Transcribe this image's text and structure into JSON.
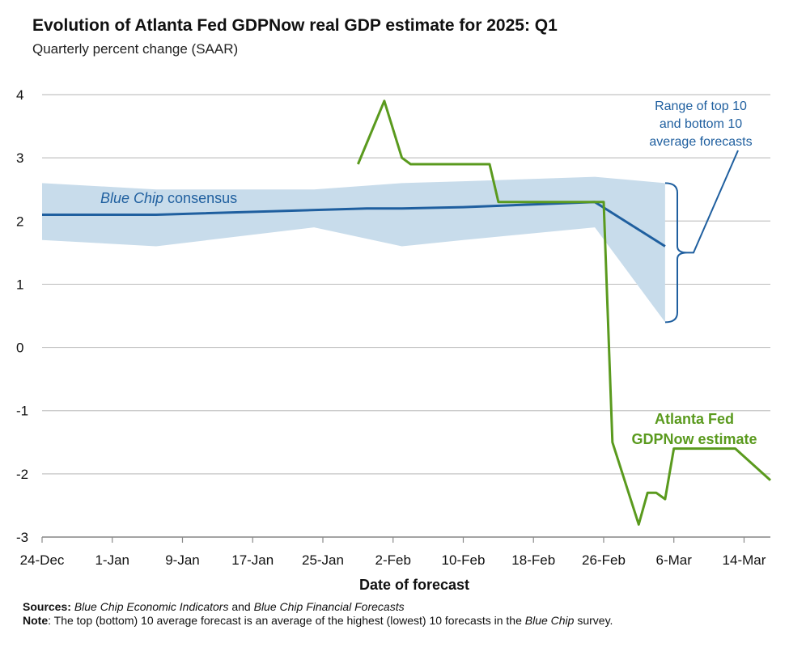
{
  "chart_data": {
    "type": "line",
    "title": "Evolution of Atlanta Fed GDPNow real GDP estimate for 2025: Q1",
    "subtitle": "Quarterly percent change (SAAR)",
    "xlabel": "Date of forecast",
    "ylabel": "",
    "ylim": [
      -3,
      4
    ],
    "yticks": [
      "4",
      "3",
      "2",
      "1",
      "0",
      "-1",
      "-2",
      "-3"
    ],
    "ytick_values": [
      4,
      3,
      2,
      1,
      0,
      -1,
      -2,
      -3
    ],
    "x_domain": [
      "2024-12-24",
      "2025-03-17"
    ],
    "xticks": [
      "24-Dec",
      "1-Jan",
      "9-Jan",
      "17-Jan",
      "25-Jan",
      "2-Feb",
      "10-Feb",
      "18-Feb",
      "26-Feb",
      "6-Mar",
      "14-Mar"
    ],
    "xtick_dates": [
      "2024-12-24",
      "2025-01-01",
      "2025-01-09",
      "2025-01-17",
      "2025-01-25",
      "2025-02-02",
      "2025-02-10",
      "2025-02-18",
      "2025-02-26",
      "2025-03-06",
      "2025-03-14"
    ],
    "grid": "horizontal",
    "series": [
      {
        "name": "Blue Chip consensus",
        "kind": "line",
        "color": "#1f5f9f",
        "x": [
          "2024-12-24",
          "2025-01-06",
          "2025-01-30",
          "2025-02-03",
          "2025-02-10",
          "2025-02-25",
          "2025-03-05"
        ],
        "y": [
          2.1,
          2.1,
          2.2,
          2.2,
          2.22,
          2.3,
          1.6
        ]
      },
      {
        "name": "Range of top 10 and bottom 10 average forecasts",
        "kind": "band",
        "color": "#c8dceb",
        "x": [
          "2024-12-24",
          "2025-01-06",
          "2025-01-24",
          "2025-02-03",
          "2025-02-10",
          "2025-02-25",
          "2025-03-05"
        ],
        "upper": [
          2.6,
          2.5,
          2.5,
          2.6,
          2.63,
          2.7,
          2.6
        ],
        "lower": [
          1.7,
          1.6,
          1.9,
          1.6,
          1.7,
          1.9,
          0.4
        ]
      },
      {
        "name": "Atlanta Fed GDPNow estimate",
        "kind": "line",
        "color": "#5a9a1e",
        "x": [
          "2025-01-29",
          "2025-02-01",
          "2025-02-03",
          "2025-02-04",
          "2025-02-13",
          "2025-02-14",
          "2025-02-26",
          "2025-02-27",
          "2025-03-02",
          "2025-03-03",
          "2025-03-04",
          "2025-03-05",
          "2025-03-06",
          "2025-03-07",
          "2025-03-13",
          "2025-03-17"
        ],
        "y": [
          2.9,
          3.9,
          3.0,
          2.9,
          2.9,
          2.3,
          2.3,
          -1.5,
          -2.8,
          -2.3,
          -2.3,
          -2.4,
          -1.6,
          -1.6,
          -1.6,
          -2.1
        ]
      }
    ],
    "annotations": {
      "blue_chip_italic": "Blue Chip",
      "blue_chip_rest": " consensus",
      "range_line1": "Range of top 10",
      "range_line2": "and bottom 10",
      "range_line3": "average forecasts",
      "gdpnow_line1": "Atlanta Fed",
      "gdpnow_line2": "GDPNow estimate"
    },
    "colors": {
      "grid": "#c4c4c4",
      "axis": "#8a8a8a",
      "band": "#c8dceb",
      "blue": "#1f5f9f",
      "green": "#5a9a1e"
    }
  },
  "footer": {
    "sources_label": "Sources:",
    "sources_pub1": "Blue Chip Economic Indicators",
    "sources_and": " and ",
    "sources_pub2": "Blue Chip Financial Forecasts",
    "note_label": "Note",
    "note_text1": ": The top (bottom) 10 average forecast is an average of the highest (lowest) 10 forecasts in the ",
    "note_italic": "Blue Chip",
    "note_text2": " survey."
  }
}
